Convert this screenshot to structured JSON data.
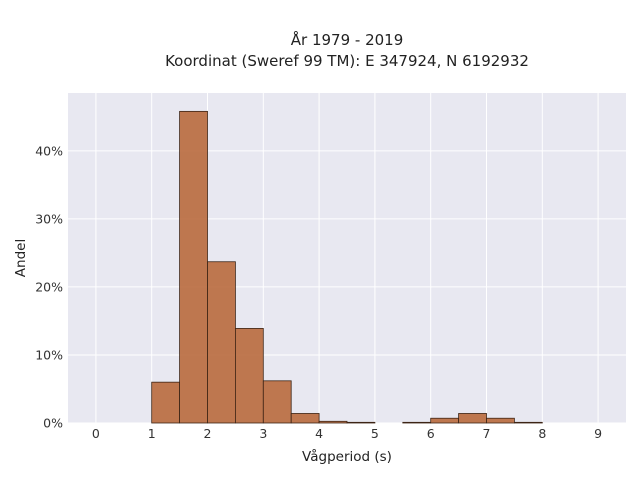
{
  "chart_data": {
    "type": "bar",
    "title_line1": "År 1979 - 2019",
    "title_line2": "Koordinat (Sweref 99 TM): E 347924, N 6192932",
    "xlabel": "Vågperiod (s)",
    "ylabel": "Andel",
    "xlim": [
      -0.5,
      9.5
    ],
    "ylim": [
      0,
      48.5
    ],
    "x_ticks": [
      0,
      1,
      2,
      3,
      4,
      5,
      6,
      7,
      8,
      9
    ],
    "x_tick_labels": [
      "0",
      "1",
      "2",
      "3",
      "4",
      "5",
      "6",
      "7",
      "8",
      "9"
    ],
    "y_ticks": [
      0,
      10,
      20,
      30,
      40
    ],
    "y_tick_labels": [
      "0%",
      "10%",
      "20%",
      "30%",
      "40%"
    ],
    "grid": true,
    "bin_width": 0.5,
    "bins": [
      {
        "start": 1.0,
        "value": 6.0
      },
      {
        "start": 1.5,
        "value": 45.8
      },
      {
        "start": 2.0,
        "value": 23.7
      },
      {
        "start": 2.5,
        "value": 13.9
      },
      {
        "start": 3.0,
        "value": 6.2
      },
      {
        "start": 3.5,
        "value": 1.4
      },
      {
        "start": 4.0,
        "value": 0.25
      },
      {
        "start": 4.5,
        "value": 0.1
      },
      {
        "start": 5.5,
        "value": 0.1
      },
      {
        "start": 6.0,
        "value": 0.7
      },
      {
        "start": 6.5,
        "value": 1.4
      },
      {
        "start": 7.0,
        "value": 0.7
      },
      {
        "start": 7.5,
        "value": 0.1
      }
    ],
    "colors": {
      "bar_fill": "#b96a3d",
      "bar_stroke": "#3d2415",
      "plot_bg": "#e8e8f1",
      "grid": "#ffffff"
    }
  }
}
